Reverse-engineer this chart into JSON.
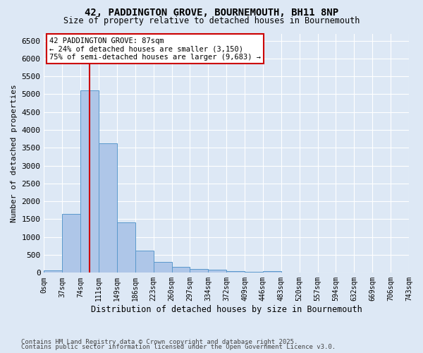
{
  "title1": "42, PADDINGTON GROVE, BOURNEMOUTH, BH11 8NP",
  "title2": "Size of property relative to detached houses in Bournemouth",
  "xlabel": "Distribution of detached houses by size in Bournemouth",
  "ylabel": "Number of detached properties",
  "bin_labels": [
    "0sqm",
    "37sqm",
    "74sqm",
    "111sqm",
    "149sqm",
    "186sqm",
    "223sqm",
    "260sqm",
    "297sqm",
    "334sqm",
    "372sqm",
    "409sqm",
    "446sqm",
    "483sqm",
    "520sqm",
    "557sqm",
    "594sqm",
    "632sqm",
    "669sqm",
    "706sqm",
    "743sqm"
  ],
  "bar_heights": [
    75,
    1640,
    5100,
    3620,
    1410,
    610,
    310,
    155,
    115,
    90,
    45,
    30,
    55,
    0,
    0,
    0,
    0,
    0,
    0,
    0
  ],
  "bar_color": "#aec6e8",
  "bar_edge_color": "#5a99cc",
  "vline_x": 2.0,
  "vline_color": "#cc0000",
  "annotation_text": "42 PADDINGTON GROVE: 87sqm\n← 24% of detached houses are smaller (3,150)\n75% of semi-detached houses are larger (9,683) →",
  "annotation_box_color": "#ffffff",
  "annotation_box_edge_color": "#cc0000",
  "ylim_max": 6700,
  "yticks": [
    0,
    500,
    1000,
    1500,
    2000,
    2500,
    3000,
    3500,
    4000,
    4500,
    5000,
    5500,
    6000,
    6500
  ],
  "footnote1": "Contains HM Land Registry data © Crown copyright and database right 2025.",
  "footnote2": "Contains public sector information licensed under the Open Government Licence v3.0.",
  "background_color": "#dde8f5"
}
